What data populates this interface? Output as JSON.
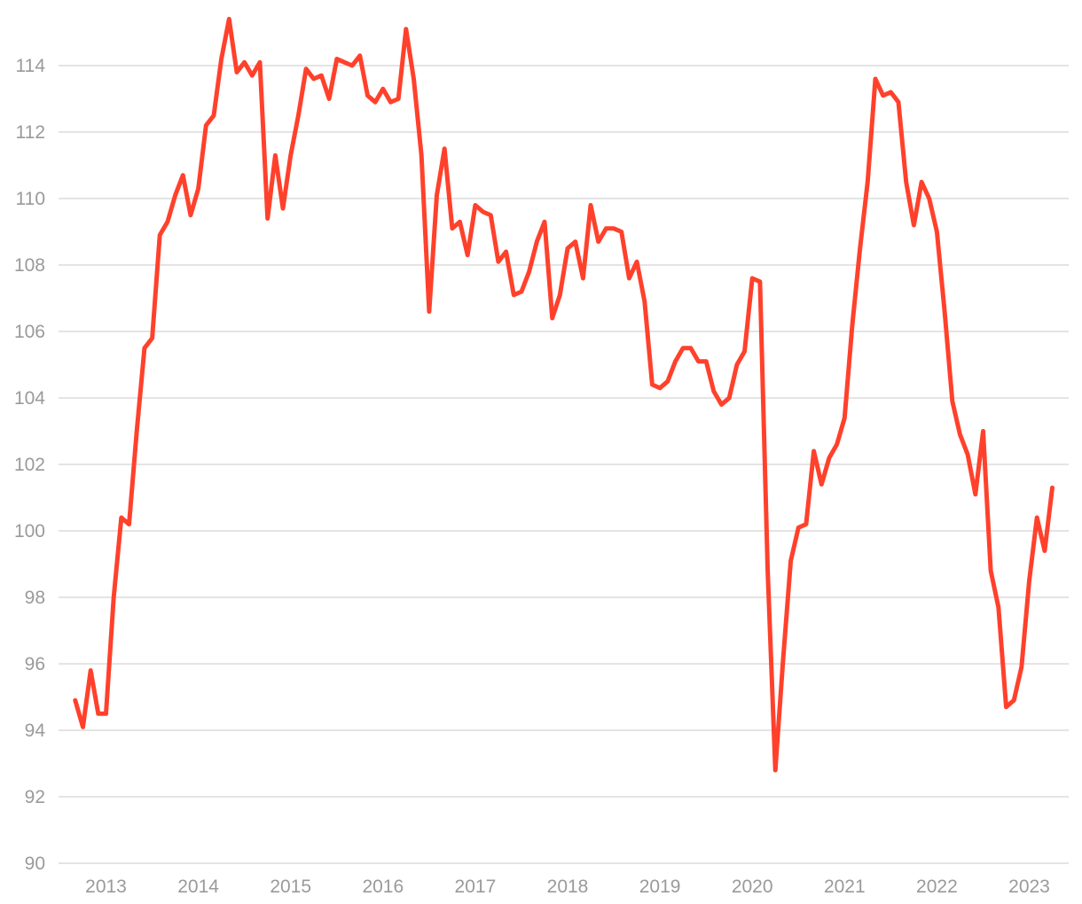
{
  "chart_data": {
    "type": "line",
    "title": "",
    "xlabel": "",
    "ylabel": "",
    "ylim": [
      90,
      115.5
    ],
    "y_ticks": [
      90,
      92,
      94,
      96,
      98,
      100,
      102,
      104,
      106,
      108,
      110,
      112,
      114
    ],
    "x_ticks": [
      "2013",
      "2014",
      "2015",
      "2016",
      "2017",
      "2018",
      "2019",
      "2020",
      "2021",
      "2022",
      "2023"
    ],
    "grid": "horizontal",
    "legend": "none",
    "series": [
      {
        "color": "#ff412c",
        "points": [
          [
            "2012-09",
            94.9
          ],
          [
            "2012-10",
            94.1
          ],
          [
            "2012-11",
            95.8
          ],
          [
            "2012-12",
            94.5
          ],
          [
            "2013-01",
            94.5
          ],
          [
            "2013-02",
            98.0
          ],
          [
            "2013-03",
            100.4
          ],
          [
            "2013-04",
            100.2
          ],
          [
            "2013-05",
            103.0
          ],
          [
            "2013-06",
            105.5
          ],
          [
            "2013-07",
            105.8
          ],
          [
            "2013-08",
            108.9
          ],
          [
            "2013-09",
            109.3
          ],
          [
            "2013-10",
            110.1
          ],
          [
            "2013-11",
            110.7
          ],
          [
            "2013-12",
            109.5
          ],
          [
            "2014-01",
            110.3
          ],
          [
            "2014-02",
            112.2
          ],
          [
            "2014-03",
            112.5
          ],
          [
            "2014-04",
            114.2
          ],
          [
            "2014-05",
            115.4
          ],
          [
            "2014-06",
            113.8
          ],
          [
            "2014-07",
            114.1
          ],
          [
            "2014-08",
            113.7
          ],
          [
            "2014-09",
            114.1
          ],
          [
            "2014-10",
            109.4
          ],
          [
            "2014-11",
            111.3
          ],
          [
            "2014-12",
            109.7
          ],
          [
            "2015-01",
            111.3
          ],
          [
            "2015-02",
            112.5
          ],
          [
            "2015-03",
            113.9
          ],
          [
            "2015-04",
            113.6
          ],
          [
            "2015-05",
            113.7
          ],
          [
            "2015-06",
            113.0
          ],
          [
            "2015-07",
            114.2
          ],
          [
            "2015-08",
            114.1
          ],
          [
            "2015-09",
            114.0
          ],
          [
            "2015-10",
            114.3
          ],
          [
            "2015-11",
            113.1
          ],
          [
            "2015-12",
            112.9
          ],
          [
            "2016-01",
            113.3
          ],
          [
            "2016-02",
            112.9
          ],
          [
            "2016-03",
            113.0
          ],
          [
            "2016-04",
            115.1
          ],
          [
            "2016-05",
            113.6
          ],
          [
            "2016-06",
            111.3
          ],
          [
            "2016-07",
            106.6
          ],
          [
            "2016-08",
            110.1
          ],
          [
            "2016-09",
            111.5
          ],
          [
            "2016-10",
            109.1
          ],
          [
            "2016-11",
            109.3
          ],
          [
            "2016-12",
            108.3
          ],
          [
            "2017-01",
            109.8
          ],
          [
            "2017-02",
            109.6
          ],
          [
            "2017-03",
            109.5
          ],
          [
            "2017-04",
            108.1
          ],
          [
            "2017-05",
            108.4
          ],
          [
            "2017-06",
            107.1
          ],
          [
            "2017-07",
            107.2
          ],
          [
            "2017-08",
            107.8
          ],
          [
            "2017-09",
            108.7
          ],
          [
            "2017-10",
            109.3
          ],
          [
            "2017-11",
            106.4
          ],
          [
            "2017-12",
            107.1
          ],
          [
            "2018-01",
            108.5
          ],
          [
            "2018-02",
            108.7
          ],
          [
            "2018-03",
            107.6
          ],
          [
            "2018-04",
            109.8
          ],
          [
            "2018-05",
            108.7
          ],
          [
            "2018-06",
            109.1
          ],
          [
            "2018-07",
            109.1
          ],
          [
            "2018-08",
            109.0
          ],
          [
            "2018-09",
            107.6
          ],
          [
            "2018-10",
            108.1
          ],
          [
            "2018-11",
            106.9
          ],
          [
            "2018-12",
            104.4
          ],
          [
            "2019-01",
            104.3
          ],
          [
            "2019-02",
            104.5
          ],
          [
            "2019-03",
            105.1
          ],
          [
            "2019-04",
            105.5
          ],
          [
            "2019-05",
            105.5
          ],
          [
            "2019-06",
            105.1
          ],
          [
            "2019-07",
            105.1
          ],
          [
            "2019-08",
            104.2
          ],
          [
            "2019-09",
            103.8
          ],
          [
            "2019-10",
            104.0
          ],
          [
            "2019-11",
            105.0
          ],
          [
            "2019-12",
            105.4
          ],
          [
            "2020-01",
            107.6
          ],
          [
            "2020-02",
            107.5
          ],
          [
            "2020-03",
            98.8
          ],
          [
            "2020-04",
            92.8
          ],
          [
            "2020-05",
            96.1
          ],
          [
            "2020-06",
            99.1
          ],
          [
            "2020-07",
            100.1
          ],
          [
            "2020-08",
            100.2
          ],
          [
            "2020-09",
            102.4
          ],
          [
            "2020-10",
            101.4
          ],
          [
            "2020-11",
            102.2
          ],
          [
            "2020-12",
            102.6
          ],
          [
            "2021-01",
            103.4
          ],
          [
            "2021-02",
            106.2
          ],
          [
            "2021-03",
            108.5
          ],
          [
            "2021-04",
            110.5
          ],
          [
            "2021-05",
            113.6
          ],
          [
            "2021-06",
            113.1
          ],
          [
            "2021-07",
            113.2
          ],
          [
            "2021-08",
            112.9
          ],
          [
            "2021-09",
            110.5
          ],
          [
            "2021-10",
            109.2
          ],
          [
            "2021-11",
            110.5
          ],
          [
            "2021-12",
            110.0
          ],
          [
            "2022-01",
            109.0
          ],
          [
            "2022-02",
            106.6
          ],
          [
            "2022-03",
            103.9
          ],
          [
            "2022-04",
            102.9
          ],
          [
            "2022-05",
            102.3
          ],
          [
            "2022-06",
            101.1
          ],
          [
            "2022-07",
            103.0
          ],
          [
            "2022-08",
            98.8
          ],
          [
            "2022-09",
            97.7
          ],
          [
            "2022-10",
            94.7
          ],
          [
            "2022-11",
            94.9
          ],
          [
            "2022-12",
            95.9
          ],
          [
            "2023-01",
            98.5
          ],
          [
            "2023-02",
            100.4
          ],
          [
            "2023-03",
            99.4
          ],
          [
            "2023-04",
            101.3
          ]
        ]
      }
    ]
  }
}
